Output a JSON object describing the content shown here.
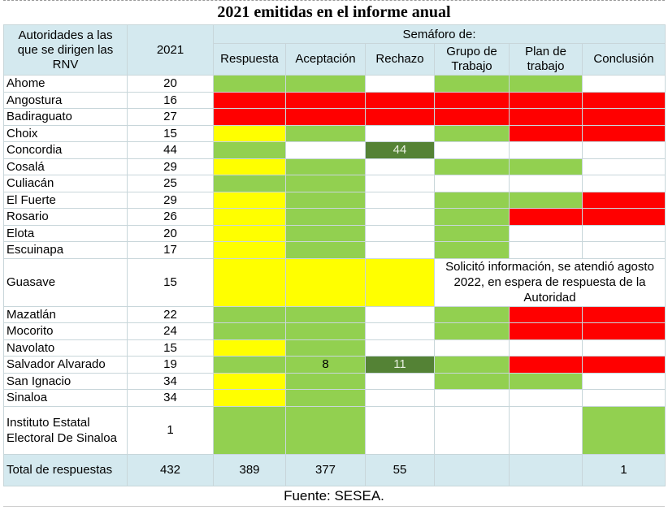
{
  "title": "2021 emitidas en el informe anual",
  "header": {
    "authorities": "Autoridades a las que se dirigen las RNV",
    "year": "2021",
    "group": "Semáforo de:",
    "columns": [
      "Respuesta",
      "Aceptación",
      "Rechazo",
      "Grupo de Trabajo",
      "Plan de trabajo",
      "Conclusión"
    ]
  },
  "rows": [
    {
      "name": "Ahome",
      "count": 20,
      "cells": [
        "green",
        "green",
        "white",
        "green",
        "green",
        "white"
      ]
    },
    {
      "name": "Angostura",
      "count": 16,
      "cells": [
        "red",
        "red",
        "red",
        "red",
        "red",
        "red"
      ]
    },
    {
      "name": "Badiraguato",
      "count": 27,
      "cells": [
        "red",
        "red",
        "red",
        "red",
        "red",
        "red"
      ]
    },
    {
      "name": "Choix",
      "count": 15,
      "cells": [
        "yellow",
        "green",
        "white",
        "green",
        "red",
        "red"
      ]
    },
    {
      "name": "Concordia",
      "count": 44,
      "cells": [
        "green",
        "white",
        {
          "color": "dark",
          "text": 44
        },
        "white",
        "white",
        "white"
      ]
    },
    {
      "name": "Cosalá",
      "count": 29,
      "cells": [
        "yellow",
        "green",
        "white",
        "green",
        "green",
        "white"
      ]
    },
    {
      "name": "Culiacán",
      "count": 25,
      "cells": [
        "green",
        "green",
        "white",
        "white",
        "white",
        "white"
      ]
    },
    {
      "name": "El Fuerte",
      "count": 29,
      "cells": [
        "yellow",
        "green",
        "white",
        "green",
        "green",
        "red"
      ]
    },
    {
      "name": "Rosario",
      "count": 26,
      "cells": [
        "yellow",
        "green",
        "white",
        "green",
        "red",
        "red"
      ]
    },
    {
      "name": "Elota",
      "count": 20,
      "cells": [
        "yellow",
        "green",
        "white",
        "green",
        "white",
        "white"
      ]
    },
    {
      "name": "Escuinapa",
      "count": 17,
      "cells": [
        "yellow",
        "green",
        "white",
        "green",
        "white",
        "white"
      ]
    },
    {
      "name": "Guasave",
      "count": 15,
      "cells": [
        "yellow",
        "yellow",
        "yellow"
      ],
      "note": "Solicitó información, se atendió agosto 2022, en espera de respuesta de la Autoridad"
    },
    {
      "name": "Mazatlán",
      "count": 22,
      "cells": [
        "green",
        "green",
        "white",
        "green",
        "red",
        "red"
      ]
    },
    {
      "name": "Mocorito",
      "count": 24,
      "cells": [
        "green",
        "green",
        "white",
        "green",
        "red",
        "red"
      ]
    },
    {
      "name": "Navolato",
      "count": 15,
      "cells": [
        "yellow",
        "green",
        "white",
        "white",
        "white",
        "white"
      ]
    },
    {
      "name": "Salvador Alvarado",
      "count": 19,
      "cells": [
        "green",
        {
          "color": "green",
          "text": 8
        },
        {
          "color": "dark",
          "text": 11
        },
        "green",
        "red",
        "red"
      ]
    },
    {
      "name": "San Ignacio",
      "count": 34,
      "cells": [
        "yellow",
        "green",
        "white",
        "green",
        "green",
        "white"
      ]
    },
    {
      "name": "Sinaloa",
      "count": 34,
      "cells": [
        "yellow",
        "green",
        "white",
        "white",
        "white",
        "white"
      ]
    },
    {
      "name": "Instituto Estatal Electoral De Sinaloa",
      "count": 1,
      "cells": [
        "green",
        "green",
        "white",
        "white",
        "white",
        "green"
      ]
    }
  ],
  "total": {
    "label": "Total de respuestas",
    "count": 432,
    "cells": [
      389,
      377,
      55,
      null,
      null,
      1
    ]
  },
  "source": "Fuente: SESEA."
}
